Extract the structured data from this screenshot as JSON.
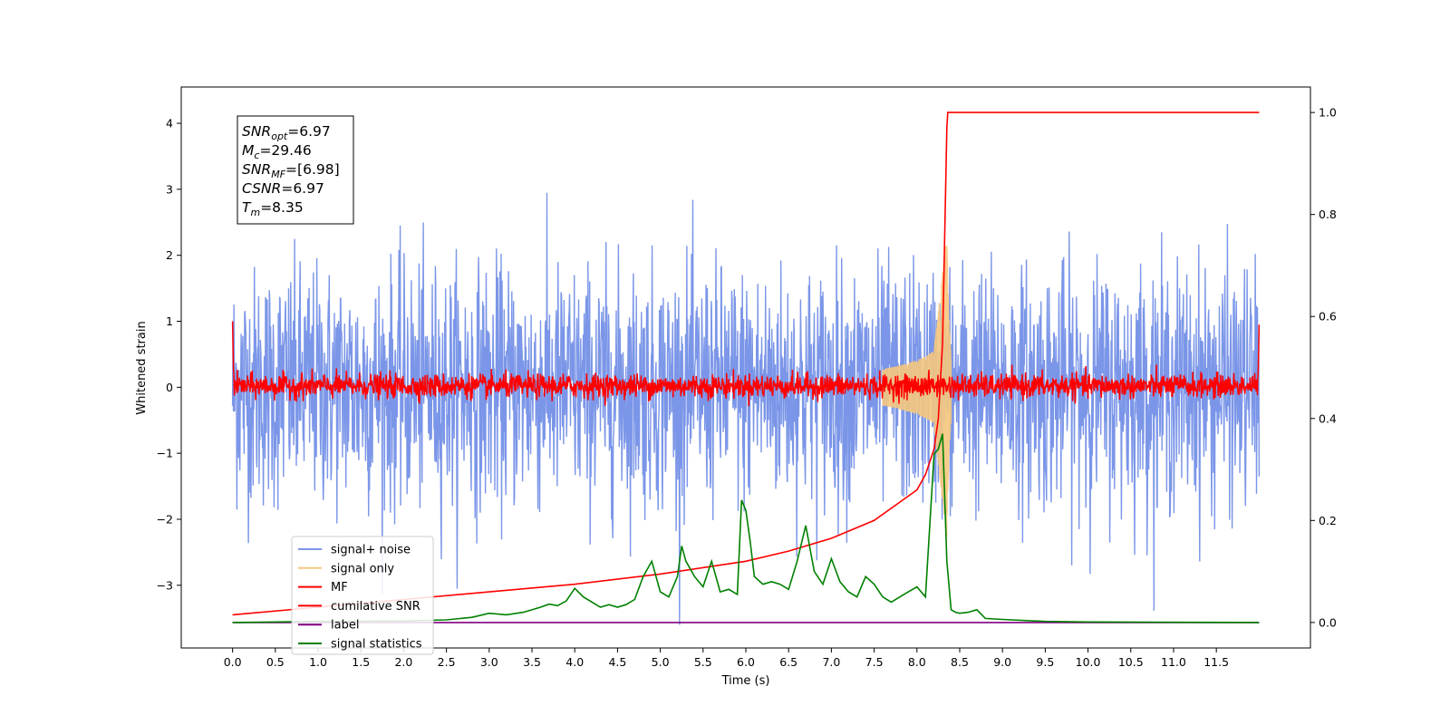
{
  "chart_data": {
    "type": "line",
    "xlabel": "Time (s)",
    "ylabel": "Whitened strain",
    "xlim": [
      -0.6,
      12.6
    ],
    "ylim": [
      -3.95,
      4.55
    ],
    "y2lim": [
      -0.05,
      1.05
    ],
    "xticks": [
      "0.0",
      "0.5",
      "1.0",
      "1.5",
      "2.0",
      "2.5",
      "3.0",
      "3.5",
      "4.0",
      "4.5",
      "5.0",
      "5.5",
      "6.0",
      "6.5",
      "7.0",
      "7.5",
      "8.0",
      "8.5",
      "9.0",
      "9.5",
      "10.0",
      "10.5",
      "11.0",
      "11.5"
    ],
    "yticks": [
      "4",
      "3",
      "2",
      "1",
      "0",
      "−1",
      "−2",
      "−3"
    ],
    "y2ticks": [
      "1.0",
      "0.8",
      "0.6",
      "0.4",
      "0.2",
      "0.0"
    ],
    "grid": false,
    "legend_position": "lower-left",
    "info_box": {
      "lines": [
        {
          "sym": "SNR",
          "sub": "opt",
          "val": "=6.97"
        },
        {
          "sym": "M",
          "sub": "c",
          "val": "=29.46"
        },
        {
          "sym": "SNR",
          "sub": "MF",
          "val": "=[6.98]"
        },
        {
          "sym": "CSNR",
          "sub": "",
          "val": "=6.97"
        },
        {
          "sym": "T",
          "sub": "m",
          "val": "=8.35"
        }
      ]
    },
    "series": [
      {
        "name": "signal+ noise",
        "color": "#7b96e8",
        "axis": "left",
        "description": "white noise, std ~0.9, t 0-12 s"
      },
      {
        "name": "signal only",
        "color": "#f5c77e",
        "axis": "left",
        "description": "chirp, merger at 8.35 s, peak ~2.3"
      },
      {
        "name": "MF",
        "color": "#ff0000",
        "axis": "left",
        "noise_range": [
          -0.2,
          0.3
        ]
      },
      {
        "name": "cumilative SNR",
        "color": "#ff0000",
        "axis": "right",
        "x": [
          0.0,
          1.0,
          2.0,
          3.0,
          4.0,
          5.0,
          6.0,
          6.5,
          7.0,
          7.5,
          8.0,
          8.1,
          8.2,
          8.25,
          8.3,
          8.33,
          8.35,
          8.36,
          12.0
        ],
        "y": [
          0.015,
          0.03,
          0.045,
          0.06,
          0.075,
          0.095,
          0.12,
          0.14,
          0.165,
          0.2,
          0.26,
          0.29,
          0.34,
          0.4,
          0.55,
          0.8,
          0.97,
          1.0,
          1.0
        ]
      },
      {
        "name": "label",
        "color": "#800080",
        "axis": "right",
        "x": [
          0.0,
          12.0
        ],
        "y": [
          0.0,
          0.0
        ]
      },
      {
        "name": "signal statistics",
        "color": "#008000",
        "axis": "right",
        "x": [
          0.0,
          1.0,
          2.0,
          2.5,
          2.8,
          3.0,
          3.2,
          3.4,
          3.6,
          3.7,
          3.8,
          3.9,
          4.0,
          4.1,
          4.3,
          4.4,
          4.5,
          4.6,
          4.7,
          4.8,
          4.9,
          5.0,
          5.1,
          5.2,
          5.25,
          5.3,
          5.4,
          5.5,
          5.6,
          5.7,
          5.8,
          5.9,
          5.95,
          6.0,
          6.05,
          6.1,
          6.2,
          6.3,
          6.4,
          6.5,
          6.6,
          6.7,
          6.8,
          6.9,
          7.0,
          7.1,
          7.2,
          7.3,
          7.4,
          7.5,
          7.6,
          7.7,
          7.8,
          7.9,
          8.0,
          8.1,
          8.2,
          8.25,
          8.3,
          8.35,
          8.4,
          8.45,
          8.5,
          8.6,
          8.7,
          8.8,
          9.0,
          9.5,
          10.0,
          12.0
        ],
        "y": [
          0.0,
          0.002,
          0.003,
          0.005,
          0.01,
          0.018,
          0.015,
          0.02,
          0.03,
          0.036,
          0.033,
          0.042,
          0.067,
          0.05,
          0.03,
          0.035,
          0.03,
          0.035,
          0.045,
          0.09,
          0.12,
          0.06,
          0.05,
          0.09,
          0.15,
          0.12,
          0.09,
          0.07,
          0.12,
          0.06,
          0.065,
          0.055,
          0.24,
          0.22,
          0.16,
          0.09,
          0.075,
          0.08,
          0.075,
          0.065,
          0.12,
          0.19,
          0.1,
          0.075,
          0.125,
          0.08,
          0.06,
          0.05,
          0.09,
          0.075,
          0.05,
          0.04,
          0.05,
          0.06,
          0.07,
          0.05,
          0.33,
          0.34,
          0.37,
          0.12,
          0.025,
          0.02,
          0.018,
          0.02,
          0.025,
          0.008,
          0.006,
          0.002,
          0.001,
          0.0
        ]
      }
    ]
  }
}
